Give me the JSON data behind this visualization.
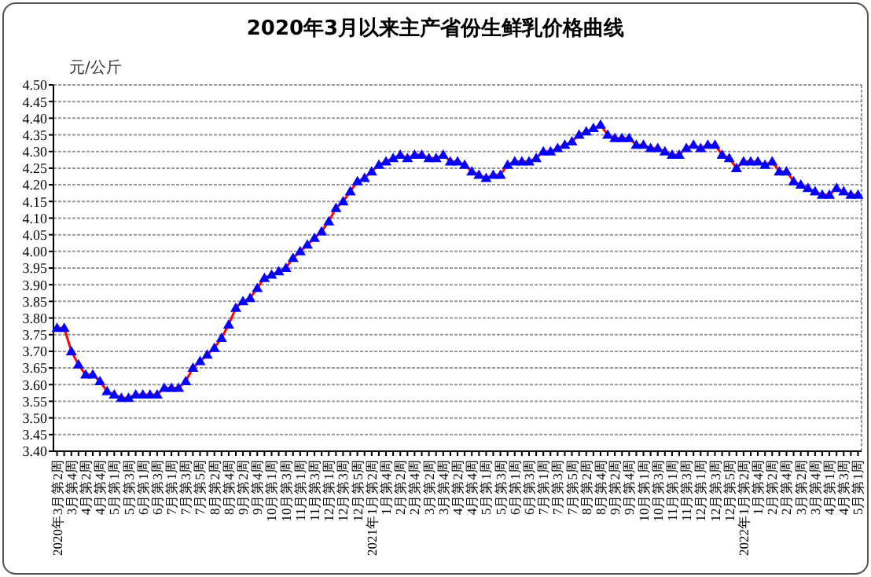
{
  "chart_data": {
    "type": "line",
    "title": "2020年3月以来主产省份生鲜乳价格曲线",
    "ylabel": "元/公斤",
    "categories": [
      "2020年3月第2周",
      null,
      "3月第4周",
      null,
      "4月第2周",
      null,
      "4月第4周",
      null,
      "5月第1周",
      null,
      "5月第3周",
      null,
      "6月第1周",
      null,
      "6月第3周",
      null,
      "7月第1周",
      null,
      "7月第3周",
      null,
      "7月第5周",
      null,
      "8月第2周",
      null,
      "8月第4周",
      null,
      "9月第2周",
      null,
      "9月第4周",
      null,
      "10月第1周",
      null,
      "10月第3周",
      null,
      "11月第1周",
      null,
      "11月第3周",
      null,
      "12月第1周",
      null,
      "12月第3周",
      null,
      "12月第5周",
      null,
      "2021年1月第2周",
      null,
      "1月第4周",
      null,
      "2月第2周",
      null,
      "2月第4周",
      null,
      "3月第2周",
      null,
      "3月第4周",
      null,
      "4月第2周",
      null,
      "4月第4周",
      null,
      "5月第1周",
      null,
      "5月第3周",
      null,
      "6月第1周",
      null,
      "6月第3周",
      null,
      "7月第1周",
      null,
      "7月第3周",
      null,
      "7月第5周",
      null,
      "8月第2周",
      null,
      "8月第4周",
      null,
      "9月第2周",
      null,
      "9月第4周",
      null,
      "10月第1周",
      null,
      "10月第3周",
      null,
      "11月第1周",
      null,
      "11月第3周",
      null,
      "12月第1周",
      null,
      "12月第3周",
      null,
      "12月第5周",
      null,
      "2022年1月第2周",
      null,
      "1月第4周",
      null,
      "2月第2周",
      null,
      "2月第4周",
      null,
      "3月第2周",
      null,
      "3月第4周",
      null,
      "4月第1周",
      null,
      "4月第3周",
      null,
      "5月第1周"
    ],
    "series": [
      {
        "color": "#ff0000",
        "values": [
          3.77,
          3.77,
          3.7,
          3.66,
          3.63,
          3.63,
          3.61,
          3.58,
          3.57,
          3.56,
          3.56,
          3.57,
          3.57,
          3.57,
          3.57,
          3.59,
          3.59,
          3.59,
          3.61,
          3.65,
          3.67,
          3.69,
          3.71,
          3.74,
          3.78,
          3.83,
          3.85,
          3.86,
          3.89,
          3.92,
          3.93,
          3.94,
          3.95,
          3.98,
          4.0,
          4.02,
          4.04,
          4.06,
          4.09,
          4.13,
          4.15,
          4.18,
          4.21,
          4.22,
          4.24,
          4.26,
          4.27,
          4.28,
          4.29,
          4.28,
          4.29,
          4.29,
          4.28,
          4.28,
          4.29,
          4.27,
          4.27,
          4.26,
          4.24,
          4.23,
          4.22,
          4.23,
          4.23,
          4.26,
          4.27,
          4.27,
          4.27,
          4.28,
          4.3,
          4.3,
          4.31,
          4.32,
          4.33,
          4.35,
          4.36,
          4.37,
          4.38,
          4.35,
          4.34,
          4.34,
          4.34,
          4.32,
          4.32,
          4.31,
          4.31,
          4.3,
          4.29,
          4.29,
          4.31,
          4.32,
          4.31,
          4.32,
          4.32,
          4.29,
          4.28,
          4.25,
          4.27,
          4.27,
          4.27,
          4.26,
          4.27,
          4.24,
          4.24,
          4.21,
          4.2,
          4.19,
          4.18,
          4.17,
          4.17,
          4.19,
          4.18,
          4.17,
          4.17
        ]
      }
    ],
    "ylim": [
      3.4,
      4.5
    ],
    "yticks": [
      {
        "value": 3.4,
        "label": "3.40"
      },
      {
        "value": 3.45,
        "label": "3.45"
      },
      {
        "value": 3.5,
        "label": "3.50"
      },
      {
        "value": 3.55,
        "label": "3.55"
      },
      {
        "value": 3.6,
        "label": "3.60"
      },
      {
        "value": 3.65,
        "label": "3.65"
      },
      {
        "value": 3.7,
        "label": "3.70"
      },
      {
        "value": 3.75,
        "label": "3.75"
      },
      {
        "value": 3.8,
        "label": "3.80"
      },
      {
        "value": 3.85,
        "label": "3.85"
      },
      {
        "value": 3.9,
        "label": "3.90"
      },
      {
        "value": 3.95,
        "label": "3.95"
      },
      {
        "value": 4.0,
        "label": "4.00"
      },
      {
        "value": 4.05,
        "label": "4.05"
      },
      {
        "value": 4.1,
        "label": "4.10"
      },
      {
        "value": 4.15,
        "label": "4.15"
      },
      {
        "value": 4.2,
        "label": "4.20"
      },
      {
        "value": 4.25,
        "label": "4.25"
      },
      {
        "value": 4.3,
        "label": "4.30"
      },
      {
        "value": 4.35,
        "label": "4.35"
      },
      {
        "value": 4.4,
        "label": "4.40"
      },
      {
        "value": 4.45,
        "label": "4.45"
      },
      {
        "value": 4.5,
        "label": "4.50"
      }
    ],
    "grid": "y",
    "marker": "triangle",
    "line_style": "solid"
  }
}
